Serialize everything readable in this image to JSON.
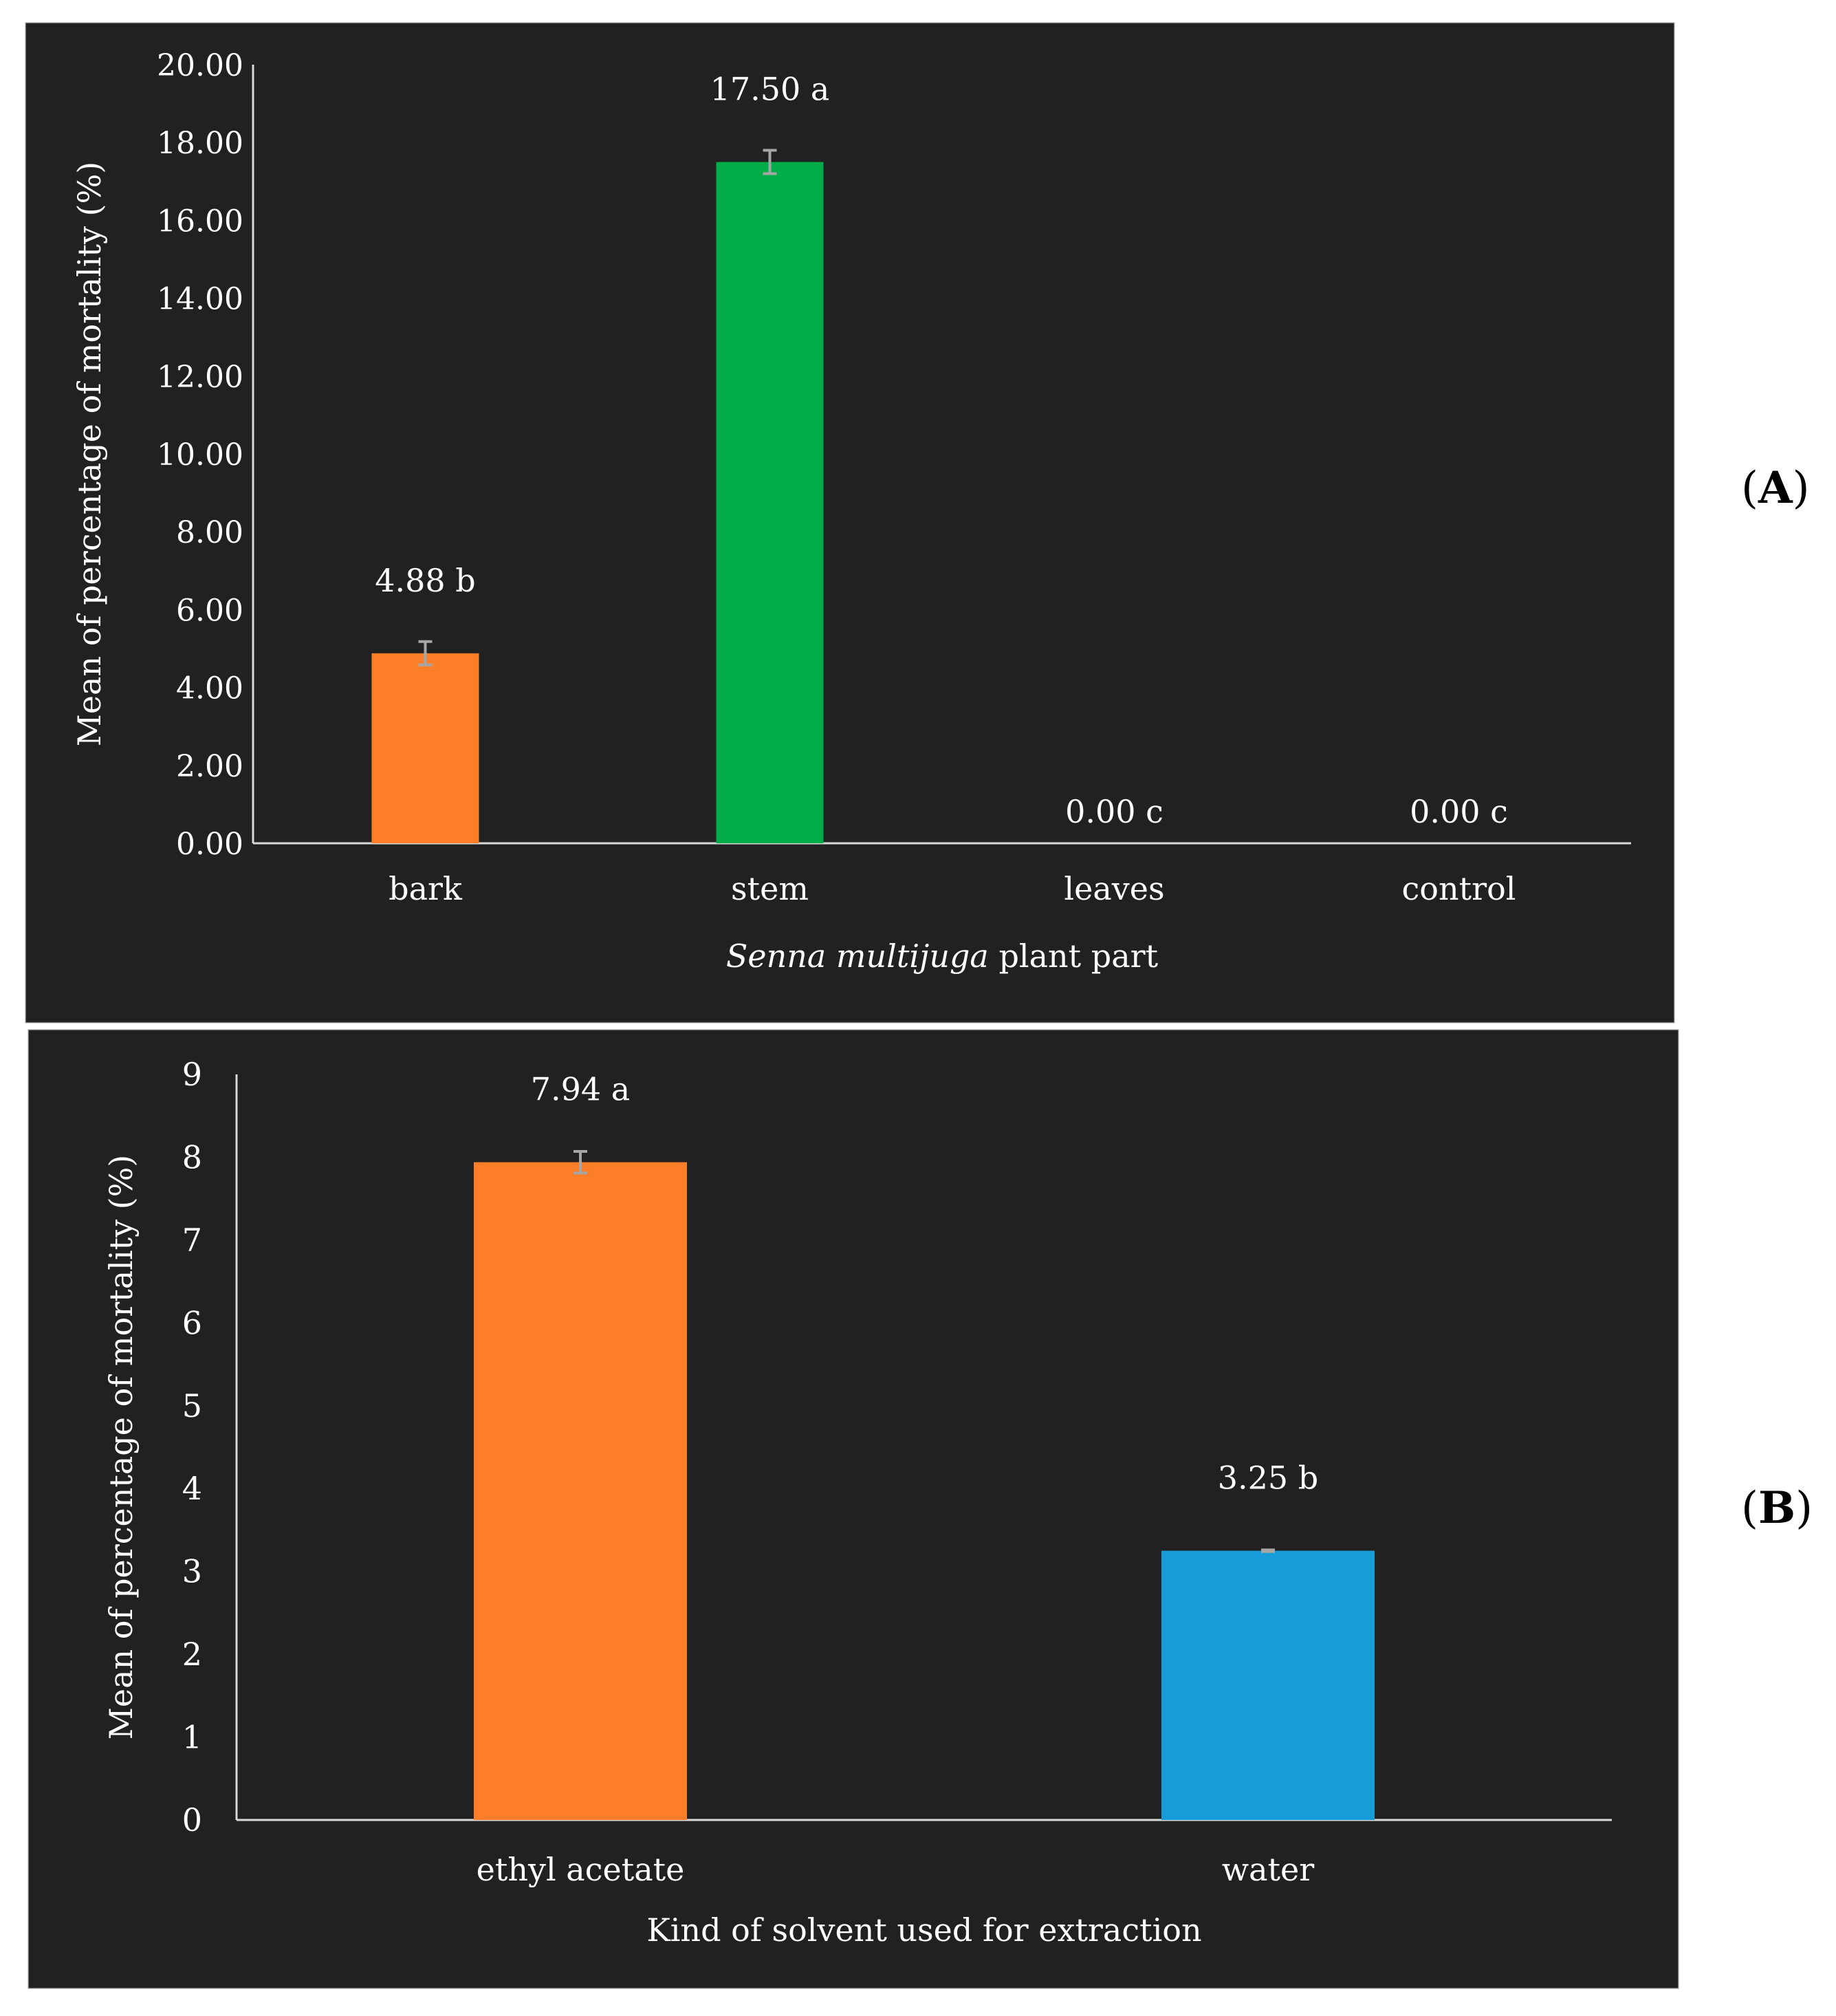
{
  "panel_labels": {
    "a": "A",
    "b": "B"
  },
  "colors": {
    "background": "#212121",
    "axis": "#d9d9d9",
    "text": "#ffffff",
    "error_bar": "#a6a6a6"
  },
  "chart_data": [
    {
      "id": "A",
      "type": "bar",
      "title": "",
      "xlabel_italic": "Senna multijuga",
      "xlabel_rest": " plant part",
      "ylabel": "Mean of percentage of mortality (%)",
      "ylim": [
        0,
        20
      ],
      "yticks": [
        "0.00",
        "2.00",
        "4.00",
        "6.00",
        "8.00",
        "10.00",
        "12.00",
        "14.00",
        "16.00",
        "18.00",
        "20.00"
      ],
      "categories": [
        "bark",
        "stem",
        "leaves",
        "control"
      ],
      "values": [
        4.88,
        17.5,
        0.0,
        0.0
      ],
      "errors": [
        0.3,
        0.3,
        0,
        0
      ],
      "data_labels": [
        "4.88 b",
        "17.50 a",
        "0.00 c",
        "0.00 c"
      ],
      "colors": [
        "#fd7e28",
        "#00ad48",
        "#fd7e28",
        "#fd7e28"
      ]
    },
    {
      "id": "B",
      "type": "bar",
      "title": "",
      "xlabel_italic": "",
      "xlabel_rest": "Kind of solvent used for extraction",
      "ylabel": "Mean of percentage of mortality (%)",
      "ylim": [
        0,
        9
      ],
      "yticks": [
        "0",
        "1",
        "2",
        "3",
        "4",
        "5",
        "6",
        "7",
        "8",
        "9"
      ],
      "categories": [
        "ethyl acetate",
        "water"
      ],
      "values": [
        7.94,
        3.25
      ],
      "errors": [
        0.13,
        0.01
      ],
      "data_labels": [
        "7.94 a",
        "3.25 b"
      ],
      "colors": [
        "#fd7e28",
        "#169cd8"
      ]
    }
  ]
}
